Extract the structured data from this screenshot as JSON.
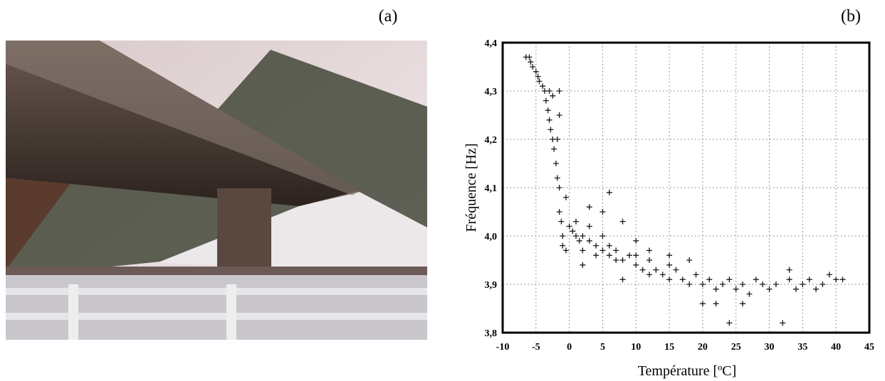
{
  "labels": [
    "(a)",
    "(b)"
  ],
  "chart_data": {
    "type": "scatter",
    "x_label": "Température [ºC]",
    "y_label": "Fréquence [Hz]",
    "xlim": [
      -10,
      45
    ],
    "ylim": [
      3.8,
      4.4
    ],
    "xticks": [
      -10,
      -5,
      0,
      5,
      10,
      15,
      20,
      25,
      30,
      35,
      40,
      45
    ],
    "yticks": [
      {
        "value": 3.8,
        "label": "3,8"
      },
      {
        "value": 3.9,
        "label": "3,9"
      },
      {
        "value": 4.0,
        "label": "4,0"
      },
      {
        "value": 4.1,
        "label": "4,1"
      },
      {
        "value": 4.2,
        "label": "4,2"
      },
      {
        "value": 4.3,
        "label": "4,3"
      },
      {
        "value": 4.4,
        "label": "4,4"
      }
    ],
    "grid": true,
    "color": "#1a1a1a",
    "x": [
      -6.5,
      -6,
      -5.8,
      -5.5,
      -5,
      -4.7,
      -4.5,
      -4,
      -3.7,
      -3.5,
      -3.2,
      -3,
      -2.8,
      -2.5,
      -2.3,
      -2,
      -1.8,
      -1.5,
      -1.5,
      -1.5,
      -1.5,
      -1.2,
      -1,
      -1,
      -2.5,
      -3,
      -1.8,
      -0.5,
      0,
      0.5,
      1,
      1.5,
      2,
      2,
      3,
      3,
      4,
      4,
      5,
      5,
      6,
      6,
      7,
      7,
      8,
      8,
      9,
      10,
      10,
      11,
      12,
      12,
      13,
      14,
      15,
      15,
      16,
      17,
      18,
      19,
      20,
      21,
      22,
      23,
      24,
      24,
      25,
      26,
      27,
      28,
      29,
      30,
      31,
      32,
      33,
      34,
      35,
      36,
      37,
      38,
      39,
      40,
      41,
      5,
      6,
      3,
      10,
      8,
      2,
      12,
      18,
      20,
      22,
      26,
      33,
      -0.5,
      1,
      15
    ],
    "values": [
      4.37,
      4.37,
      4.36,
      4.35,
      4.34,
      4.33,
      4.32,
      4.31,
      4.3,
      4.28,
      4.26,
      4.24,
      4.22,
      4.2,
      4.18,
      4.15,
      4.12,
      4.1,
      4.25,
      4.3,
      4.05,
      4.03,
      4.0,
      3.98,
      4.29,
      4.3,
      4.2,
      4.08,
      4.02,
      4.01,
      4.0,
      3.99,
      4.0,
      3.97,
      3.99,
      4.02,
      3.98,
      3.96,
      3.97,
      4.0,
      3.96,
      3.98,
      3.95,
      3.97,
      3.95,
      4.03,
      3.96,
      3.94,
      3.96,
      3.93,
      3.95,
      3.92,
      3.93,
      3.92,
      3.94,
      3.91,
      3.93,
      3.91,
      3.9,
      3.92,
      3.9,
      3.91,
      3.89,
      3.9,
      3.91,
      3.82,
      3.89,
      3.9,
      3.88,
      3.91,
      3.9,
      3.89,
      3.9,
      3.82,
      3.91,
      3.89,
      3.9,
      3.91,
      3.89,
      3.9,
      3.92,
      3.91,
      3.91,
      4.05,
      4.09,
      4.06,
      3.99,
      3.91,
      3.94,
      3.97,
      3.95,
      3.86,
      3.86,
      3.86,
      3.93,
      3.97,
      4.03,
      3.96
    ]
  }
}
